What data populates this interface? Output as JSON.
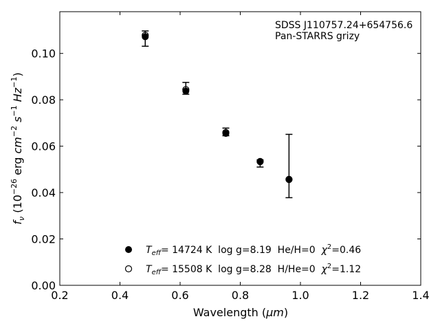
{
  "chart_data": {
    "type": "scatter",
    "xlabel": "Wavelength (",
    "xlabel_unit": "μm",
    "xlabel_close": ")",
    "ylabel_parts": {
      "f": "f",
      "nu": "ν",
      "open": " (10",
      "exp26": "−26",
      "erg": " erg ",
      "cm": "cm",
      "expm2": "−2",
      "s": " s",
      "expm1a": "−1",
      "hz": " Hz",
      "expm1b": "−1",
      "close": ")"
    },
    "xlim": [
      0.2,
      1.4
    ],
    "ylim": [
      0.0,
      0.118
    ],
    "xticks": [
      0.2,
      0.4,
      0.6,
      0.8,
      1.0,
      1.2,
      1.4
    ],
    "xtick_labels": [
      "0.2",
      "0.4",
      "0.6",
      "0.8",
      "1.0",
      "1.2",
      "1.4"
    ],
    "yticks": [
      0.0,
      0.02,
      0.04,
      0.06,
      0.08,
      0.1
    ],
    "ytick_labels": [
      "0.00",
      "0.02",
      "0.04",
      "0.06",
      "0.08",
      "0.10"
    ],
    "annotation": [
      "SDSS J110757.24+654756.6",
      "Pan-STARRS grizy"
    ],
    "observed": {
      "x": [
        0.484,
        0.619,
        0.752,
        0.866,
        0.962
      ],
      "y": [
        0.1065,
        0.0845,
        0.0659,
        0.0531,
        0.0454
      ],
      "yerr_low": [
        0.0034,
        0.0021,
        0.0014,
        0.0021,
        0.0076
      ],
      "yerr_high": [
        0.0032,
        0.003,
        0.0019,
        0.001,
        0.0197
      ]
    },
    "series": [
      {
        "marker": "filled",
        "teff_label": "T",
        "teff_sub": "eff",
        "text_a": "= 14724 K  log g=8.19  He/H=0  ",
        "chi": "χ",
        "chi_sup": "2",
        "text_b": "=0.46",
        "x": [
          0.484,
          0.619,
          0.752,
          0.866,
          0.962
        ],
        "y": [
          0.1072,
          0.0838,
          0.0655,
          0.0533,
          0.0456
        ]
      },
      {
        "marker": "open",
        "teff_label": "T",
        "teff_sub": "eff",
        "text_a": "= 15508 K  log g=8.28  H/He=0  ",
        "chi": "χ",
        "chi_sup": "2",
        "text_b": "=1.12",
        "x": [
          0.484,
          0.619,
          0.752,
          0.866,
          0.962
        ],
        "y": [
          0.1078,
          0.0844,
          0.0659,
          0.0534,
          0.0457
        ]
      }
    ],
    "grid": false,
    "legend_position": "bottom-center",
    "marker_color": "#000000"
  }
}
